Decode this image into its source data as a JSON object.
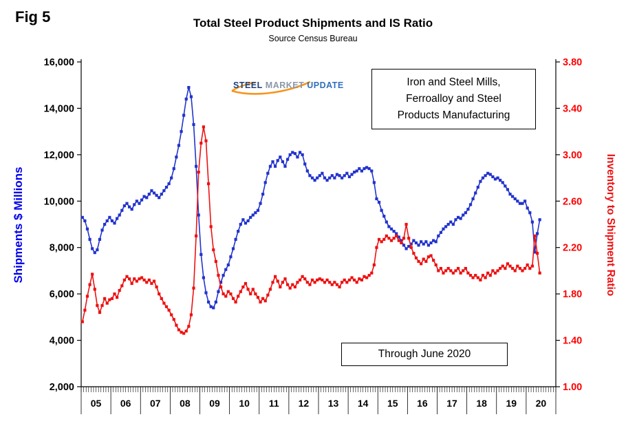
{
  "figure": {
    "label": "Fig 5"
  },
  "header": {
    "title": "Total Steel Product Shipments and IS Ratio",
    "subtitle": "Source Census Bureau"
  },
  "logo": {
    "word1": "STEEL",
    "word2": "MARKET",
    "word3": "UPDATE"
  },
  "annotations": {
    "industry_box": "Iron and Steel Mills,\nFerroalloy and Steel\nProducts Manufacturing",
    "through_box": "Through June 2020"
  },
  "chart_data": {
    "type": "line",
    "title": "Total Steel Product Shipments and IS Ratio",
    "subtitle": "Source Census Bureau",
    "grid": false,
    "legend": "none",
    "x": {
      "start": "2005-01",
      "end": "2020-06",
      "frequency": "monthly",
      "year_labels": [
        "05",
        "06",
        "07",
        "08",
        "09",
        "10",
        "11",
        "12",
        "13",
        "14",
        "15",
        "16",
        "17",
        "18",
        "19",
        "20"
      ]
    },
    "left_axis": {
      "label": "Shipments $ Millions",
      "min": 2000,
      "max": 16000,
      "step": 2000,
      "color": "#0000EE"
    },
    "right_axis": {
      "label": "Inventory to Shipment Ratio",
      "min": 1.0,
      "max": 3.8,
      "step": 0.4,
      "color": "#FF0000"
    },
    "series": [
      {
        "name": "Total Steel Product Shipments",
        "axis": "left",
        "color": "#2233CC",
        "values": [
          9300,
          9150,
          8800,
          8350,
          7950,
          7780,
          7900,
          8350,
          8750,
          9000,
          9150,
          9300,
          9150,
          9050,
          9250,
          9400,
          9600,
          9800,
          9900,
          9750,
          9650,
          9850,
          10000,
          9900,
          10050,
          10200,
          10150,
          10300,
          10450,
          10350,
          10250,
          10150,
          10300,
          10450,
          10600,
          10750,
          11000,
          11400,
          11900,
          12400,
          13000,
          13700,
          14400,
          14900,
          14500,
          13300,
          11500,
          9400,
          7700,
          6700,
          6050,
          5650,
          5450,
          5400,
          5650,
          6100,
          6500,
          6800,
          7050,
          7250,
          7600,
          7950,
          8350,
          8700,
          9000,
          9200,
          9050,
          9150,
          9300,
          9400,
          9500,
          9600,
          9900,
          10300,
          10800,
          11200,
          11500,
          11700,
          11500,
          11750,
          11900,
          11700,
          11500,
          11800,
          12000,
          12100,
          12050,
          11900,
          12100,
          12000,
          11600,
          11300,
          11100,
          11000,
          10900,
          11000,
          11100,
          11200,
          11000,
          10900,
          11000,
          11100,
          11000,
          11150,
          11100,
          11000,
          11100,
          11200,
          11050,
          11150,
          11250,
          11300,
          11400,
          11300,
          11400,
          11450,
          11400,
          11300,
          10800,
          10100,
          9950,
          9600,
          9350,
          9100,
          8900,
          8800,
          8700,
          8600,
          8450,
          8300,
          8100,
          7950,
          8050,
          8150,
          8300,
          8200,
          8100,
          8250,
          8150,
          8250,
          8100,
          8200,
          8300,
          8250,
          8500,
          8650,
          8800,
          8900,
          9000,
          9100,
          9000,
          9200,
          9300,
          9250,
          9400,
          9500,
          9650,
          9850,
          10100,
          10350,
          10600,
          10850,
          11000,
          11100,
          11200,
          11150,
          11050,
          10950,
          11000,
          10900,
          10800,
          10650,
          10500,
          10300,
          10200,
          10100,
          10000,
          9900,
          9900,
          10000,
          9700,
          9500,
          9100,
          7800,
          8600,
          9200
        ]
      },
      {
        "name": "Inventory to Shipment Ratio",
        "axis": "right",
        "color": "#EE1111",
        "values": [
          1.56,
          1.66,
          1.78,
          1.88,
          1.97,
          1.84,
          1.7,
          1.64,
          1.7,
          1.76,
          1.72,
          1.75,
          1.76,
          1.8,
          1.77,
          1.83,
          1.87,
          1.92,
          1.95,
          1.93,
          1.89,
          1.93,
          1.91,
          1.93,
          1.94,
          1.92,
          1.9,
          1.92,
          1.89,
          1.91,
          1.86,
          1.8,
          1.76,
          1.72,
          1.69,
          1.66,
          1.62,
          1.58,
          1.53,
          1.49,
          1.47,
          1.46,
          1.48,
          1.52,
          1.62,
          1.85,
          2.3,
          2.85,
          3.1,
          3.24,
          3.12,
          2.75,
          2.38,
          2.18,
          2.08,
          1.96,
          1.86,
          1.8,
          1.78,
          1.82,
          1.8,
          1.76,
          1.73,
          1.78,
          1.82,
          1.86,
          1.89,
          1.84,
          1.8,
          1.84,
          1.8,
          1.77,
          1.73,
          1.76,
          1.74,
          1.79,
          1.84,
          1.9,
          1.95,
          1.91,
          1.86,
          1.9,
          1.93,
          1.88,
          1.85,
          1.88,
          1.86,
          1.9,
          1.92,
          1.95,
          1.93,
          1.9,
          1.88,
          1.92,
          1.9,
          1.92,
          1.93,
          1.92,
          1.9,
          1.92,
          1.9,
          1.88,
          1.9,
          1.88,
          1.86,
          1.9,
          1.92,
          1.9,
          1.92,
          1.94,
          1.92,
          1.9,
          1.93,
          1.92,
          1.95,
          1.94,
          1.96,
          1.98,
          2.05,
          2.2,
          2.27,
          2.25,
          2.27,
          2.3,
          2.28,
          2.26,
          2.28,
          2.3,
          2.26,
          2.24,
          2.28,
          2.4,
          2.28,
          2.2,
          2.15,
          2.11,
          2.08,
          2.06,
          2.1,
          2.08,
          2.12,
          2.13,
          2.09,
          2.05,
          2.0,
          2.02,
          1.98,
          2.0,
          2.02,
          2.0,
          1.98,
          2.0,
          2.02,
          1.98,
          2.0,
          2.02,
          1.98,
          1.96,
          1.94,
          1.96,
          1.94,
          1.92,
          1.96,
          1.94,
          1.98,
          1.96,
          2.0,
          1.98,
          2.0,
          2.02,
          2.04,
          2.02,
          2.06,
          2.04,
          2.02,
          2.0,
          2.04,
          2.02,
          2.0,
          2.02,
          2.05,
          2.02,
          2.04,
          2.3,
          2.15,
          1.98
        ]
      }
    ]
  }
}
